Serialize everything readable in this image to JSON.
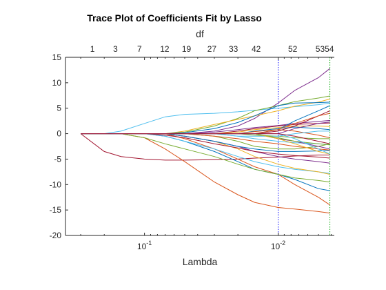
{
  "chart_data": {
    "type": "line",
    "title": "Trace Plot of Coefficients Fit by Lasso",
    "xlabel": "Lambda",
    "ylabel": "",
    "top_axis_label": "df",
    "x_scale": "log",
    "x_reversed": true,
    "xlim": [
      0.39,
      0.0038
    ],
    "ylim": [
      -20,
      15
    ],
    "x_ticks": [
      0.1,
      0.01
    ],
    "x_tick_labels": [
      {
        "base": "10",
        "exp": "-1"
      },
      {
        "base": "10",
        "exp": "-2"
      }
    ],
    "y_ticks": [
      15,
      10,
      5,
      0,
      -5,
      -10,
      -15,
      -20
    ],
    "df_labels": [
      {
        "label": "1",
        "lambda": 0.245
      },
      {
        "label": "3",
        "lambda": 0.165
      },
      {
        "label": "7",
        "lambda": 0.109
      },
      {
        "label": "12",
        "lambda": 0.0706
      },
      {
        "label": "19",
        "lambda": 0.0485
      },
      {
        "label": "27",
        "lambda": 0.0313
      },
      {
        "label": "33",
        "lambda": 0.0216
      },
      {
        "label": "42",
        "lambda": 0.0146
      },
      {
        "label": "52",
        "lambda": 0.00778
      },
      {
        "label": "5354",
        "lambda": 0.00448
      }
    ],
    "vertical_reference_lines": [
      {
        "lambda": 0.01,
        "color": "#0000ff",
        "style": "dotted"
      },
      {
        "lambda": 0.0041,
        "color": "#00aa00",
        "style": "dotted"
      }
    ],
    "x": [
      0.3,
      0.2,
      0.15,
      0.1,
      0.07,
      0.05,
      0.03,
      0.02,
      0.015,
      0.01,
      0.0075,
      0.005,
      0.0041
    ],
    "series": [
      {
        "color": "#7e2f8e",
        "values": [
          0,
          0,
          0,
          0,
          0,
          0,
          0.5,
          1.5,
          3.0,
          6.0,
          8.5,
          11.0,
          12.8
        ]
      },
      {
        "color": "#4dbeee",
        "values": [
          0,
          0,
          0.5,
          2.0,
          3.3,
          3.8,
          4.0,
          4.3,
          4.6,
          5.0,
          5.3,
          5.7,
          6.0
        ]
      },
      {
        "color": "#77ac30",
        "values": [
          0,
          0,
          0,
          0,
          0,
          0.3,
          1.5,
          3.0,
          4.5,
          5.5,
          6.3,
          7.0,
          7.4
        ]
      },
      {
        "color": "#edb120",
        "values": [
          0,
          0,
          0,
          0,
          0,
          0.5,
          1.8,
          2.8,
          3.5,
          4.5,
          5.4,
          6.2,
          6.8
        ]
      },
      {
        "color": "#0072bd",
        "values": [
          0,
          0,
          0,
          0,
          0,
          0.2,
          1.0,
          2.2,
          3.5,
          5.5,
          6.0,
          6.1,
          6.2
        ]
      },
      {
        "color": "#a2142f",
        "values": [
          0,
          -3.5,
          -4.5,
          -5.0,
          -5.2,
          -5.2,
          -5.1,
          -5.0,
          -4.8,
          -4.6,
          -4.4,
          -4.2,
          -4.2
        ]
      },
      {
        "color": "#d95319",
        "values": [
          0,
          0,
          0,
          -0.8,
          -3.0,
          -5.5,
          -9.5,
          -12.0,
          -13.5,
          -14.5,
          -14.8,
          -15.3,
          -15.6
        ]
      },
      {
        "color": "#d95319",
        "values": [
          0,
          0,
          0,
          0,
          0,
          -1.0,
          -3.0,
          -5.0,
          -6.5,
          -8.0,
          -10.0,
          -12.5,
          -14.0
        ]
      },
      {
        "color": "#0072bd",
        "values": [
          0,
          0,
          0,
          0,
          -0.5,
          -1.5,
          -3.5,
          -5.5,
          -7.0,
          -8.0,
          -9.0,
          -10.8,
          -11.2
        ]
      },
      {
        "color": "#77ac30",
        "values": [
          0,
          0,
          0,
          -0.8,
          -2.0,
          -3.0,
          -4.5,
          -6.0,
          -7.0,
          -8.0,
          -8.7,
          -9.2,
          -9.5
        ]
      },
      {
        "color": "#4dbeee",
        "values": [
          0,
          0,
          0,
          0,
          -0.5,
          -1.5,
          -3.0,
          -4.5,
          -5.5,
          -6.5,
          -7.0,
          -7.5,
          -7.8
        ]
      },
      {
        "color": "#edb120",
        "values": [
          0,
          0,
          0,
          0,
          0,
          -0.5,
          -1.5,
          -3.0,
          -4.5,
          -6.0,
          -6.8,
          -7.5,
          -8.0
        ]
      },
      {
        "color": "#7e2f8e",
        "values": [
          0,
          0,
          0,
          0,
          0,
          -0.5,
          -1.5,
          -2.5,
          -3.5,
          -4.5,
          -5.0,
          -5.5,
          -5.8
        ]
      },
      {
        "color": "#a2142f",
        "values": [
          0,
          0,
          0,
          0,
          -0.3,
          -0.8,
          -2.0,
          -2.8,
          -3.5,
          -4.0,
          -4.3,
          -4.6,
          -4.8
        ]
      },
      {
        "color": "#0072bd",
        "values": [
          0,
          0,
          0,
          0,
          0,
          -0.5,
          -1.5,
          -2.5,
          -3.0,
          -3.5,
          -3.5,
          -3.4,
          -3.3
        ]
      },
      {
        "color": "#77ac30",
        "values": [
          0,
          0,
          0,
          0,
          0,
          0,
          -0.5,
          -1.5,
          -2.5,
          -3.0,
          -3.0,
          -2.5,
          -2.0
        ]
      },
      {
        "color": "#d95319",
        "values": [
          0,
          0,
          0,
          0,
          0,
          0,
          -0.5,
          -1.0,
          -1.5,
          -2.0,
          -2.5,
          -3.0,
          -3.2
        ]
      },
      {
        "color": "#4dbeee",
        "values": [
          0,
          0,
          0,
          0,
          0,
          0,
          0,
          -0.5,
          -1.0,
          -1.5,
          -1.8,
          -2.0,
          -2.2
        ]
      },
      {
        "color": "#7e2f8e",
        "values": [
          0,
          0,
          0,
          0,
          0,
          0,
          0.3,
          0.8,
          1.2,
          1.6,
          2.0,
          2.4,
          2.6
        ]
      },
      {
        "color": "#a2142f",
        "values": [
          0,
          0,
          0,
          0,
          0,
          0,
          0,
          0.5,
          1.0,
          1.5,
          1.8,
          2.0,
          2.1
        ]
      },
      {
        "color": "#edb120",
        "values": [
          0,
          0,
          0,
          0,
          0,
          0,
          0,
          0.3,
          0.8,
          1.2,
          1.5,
          1.5,
          1.4
        ]
      },
      {
        "color": "#0072bd",
        "values": [
          0,
          0,
          0,
          0,
          0,
          0,
          0,
          0,
          0.5,
          1.0,
          1.3,
          1.0,
          0.8
        ]
      },
      {
        "color": "#77ac30",
        "values": [
          0,
          0,
          0,
          0,
          0,
          0,
          0,
          0,
          -0.3,
          -0.5,
          -0.8,
          -1.0,
          -1.0
        ]
      },
      {
        "color": "#d95319",
        "values": [
          0,
          0,
          0,
          0,
          0,
          0,
          0,
          0,
          0.4,
          0.8,
          0.5,
          -0.3,
          -0.8
        ]
      },
      {
        "color": "#4dbeee",
        "values": [
          0,
          0,
          0,
          0,
          0,
          0,
          0,
          -0.5,
          -0.5,
          -0.5,
          0,
          0.5,
          0.5
        ]
      },
      {
        "color": "#7e2f8e",
        "values": [
          0,
          0,
          0,
          0,
          0,
          0,
          0,
          0,
          0,
          -1.0,
          -1.5,
          -2.5,
          -3.0
        ]
      },
      {
        "color": "#a2142f",
        "values": [
          0,
          0,
          0,
          0,
          0,
          0,
          0,
          0,
          0,
          0.5,
          1.5,
          3.5,
          4.5
        ]
      },
      {
        "color": "#edb120",
        "values": [
          0,
          0,
          0,
          0,
          0,
          0,
          0,
          0,
          0,
          -1.0,
          -2.0,
          -3.5,
          -4.0
        ]
      },
      {
        "color": "#0072bd",
        "values": [
          0,
          0,
          0,
          0,
          0,
          0,
          0,
          0,
          0,
          0.8,
          2.5,
          4.5,
          5.5
        ]
      },
      {
        "color": "#77ac30",
        "values": [
          0,
          0,
          0,
          0,
          0,
          0,
          0,
          0,
          0,
          -0.8,
          -1.5,
          -2.0,
          -2.2
        ]
      },
      {
        "color": "#d95319",
        "values": [
          0,
          0,
          0,
          0,
          0,
          0,
          0,
          0,
          0,
          0.8,
          2.0,
          3.5,
          4.0
        ]
      },
      {
        "color": "#4dbeee",
        "values": [
          0,
          0,
          0,
          0,
          0,
          0,
          0,
          0,
          0,
          0,
          -1.0,
          -3.0,
          -4.0
        ]
      },
      {
        "color": "#7e2f8e",
        "values": [
          0,
          0,
          0,
          0,
          0,
          0,
          0,
          0,
          0,
          0,
          1.0,
          2.0,
          2.3
        ]
      },
      {
        "color": "#a2142f",
        "values": [
          0,
          0,
          0,
          0,
          0,
          0,
          0,
          0,
          0,
          0,
          -0.5,
          -1.5,
          -2.0
        ]
      }
    ]
  }
}
